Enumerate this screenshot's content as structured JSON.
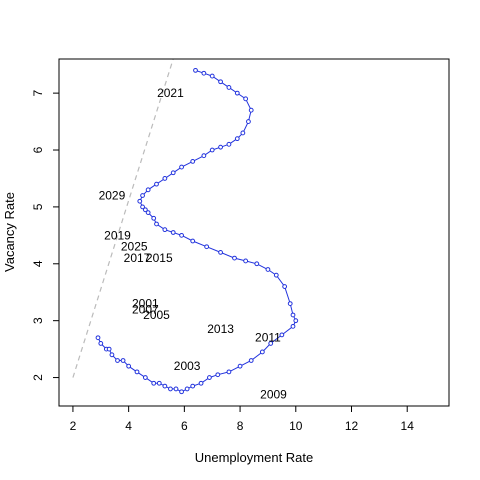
{
  "chart_data": {
    "type": "line",
    "title": "",
    "xlabel": "Unemployment Rate",
    "ylabel": "Vacancy Rate",
    "xlim": [
      1.5,
      15.5
    ],
    "ylim": [
      1.5,
      7.6
    ],
    "x_ticks": [
      2,
      4,
      6,
      8,
      10,
      12,
      14
    ],
    "y_ticks": [
      2,
      3,
      4,
      5,
      6,
      7
    ],
    "grid": false,
    "colors": {
      "series": "#2233dd",
      "reference_line": "#bbbbbb"
    },
    "reference_line": {
      "style": "dashed",
      "points": [
        [
          2.0,
          2.0
        ],
        [
          5.6,
          7.6
        ]
      ]
    },
    "series": [
      {
        "marker": "open-circle",
        "points": [
          [
            2.9,
            2.7
          ],
          [
            3.0,
            2.6
          ],
          [
            3.2,
            2.5
          ],
          [
            3.3,
            2.5
          ],
          [
            3.4,
            2.4
          ],
          [
            3.6,
            2.3
          ],
          [
            3.8,
            2.3
          ],
          [
            4.0,
            2.2
          ],
          [
            4.3,
            2.1
          ],
          [
            4.6,
            2.0
          ],
          [
            4.9,
            1.9
          ],
          [
            5.1,
            1.9
          ],
          [
            5.3,
            1.85
          ],
          [
            5.5,
            1.8
          ],
          [
            5.7,
            1.8
          ],
          [
            5.9,
            1.75
          ],
          [
            6.1,
            1.8
          ],
          [
            6.3,
            1.85
          ],
          [
            6.6,
            1.9
          ],
          [
            6.9,
            2.0
          ],
          [
            7.2,
            2.05
          ],
          [
            7.6,
            2.1
          ],
          [
            8.0,
            2.2
          ],
          [
            8.4,
            2.3
          ],
          [
            8.8,
            2.45
          ],
          [
            9.1,
            2.6
          ],
          [
            9.5,
            2.75
          ],
          [
            9.9,
            2.9
          ],
          [
            10.0,
            3.0
          ],
          [
            9.9,
            3.1
          ],
          [
            9.8,
            3.3
          ],
          [
            9.6,
            3.6
          ],
          [
            9.3,
            3.8
          ],
          [
            9.0,
            3.9
          ],
          [
            8.6,
            4.0
          ],
          [
            8.2,
            4.05
          ],
          [
            7.8,
            4.1
          ],
          [
            7.3,
            4.2
          ],
          [
            6.8,
            4.3
          ],
          [
            6.3,
            4.4
          ],
          [
            5.9,
            4.5
          ],
          [
            5.6,
            4.55
          ],
          [
            5.3,
            4.6
          ],
          [
            5.0,
            4.7
          ],
          [
            4.9,
            4.8
          ],
          [
            4.7,
            4.9
          ],
          [
            4.6,
            4.95
          ],
          [
            4.5,
            5.0
          ],
          [
            4.4,
            5.1
          ],
          [
            4.5,
            5.2
          ],
          [
            4.7,
            5.3
          ],
          [
            5.0,
            5.4
          ],
          [
            5.3,
            5.5
          ],
          [
            5.6,
            5.6
          ],
          [
            5.9,
            5.7
          ],
          [
            6.3,
            5.8
          ],
          [
            6.7,
            5.9
          ],
          [
            7.0,
            6.0
          ],
          [
            7.3,
            6.05
          ],
          [
            7.6,
            6.1
          ],
          [
            7.9,
            6.2
          ],
          [
            8.1,
            6.3
          ],
          [
            8.3,
            6.5
          ],
          [
            8.4,
            6.7
          ],
          [
            8.2,
            6.9
          ],
          [
            7.9,
            7.0
          ],
          [
            7.6,
            7.1
          ],
          [
            7.3,
            7.2
          ],
          [
            7.0,
            7.3
          ],
          [
            6.7,
            7.35
          ],
          [
            6.4,
            7.4
          ]
        ]
      }
    ],
    "annotations": [
      {
        "text": "2021",
        "x": 5.5,
        "y": 7.0
      },
      {
        "text": "2029",
        "x": 3.4,
        "y": 5.2
      },
      {
        "text": "2019",
        "x": 3.6,
        "y": 4.5
      },
      {
        "text": "2025",
        "x": 4.2,
        "y": 4.3
      },
      {
        "text": "2017",
        "x": 4.3,
        "y": 4.1
      },
      {
        "text": "2015",
        "x": 5.1,
        "y": 4.1
      },
      {
        "text": "2001",
        "x": 4.6,
        "y": 3.3
      },
      {
        "text": "2007",
        "x": 4.6,
        "y": 3.2
      },
      {
        "text": "2005",
        "x": 5.0,
        "y": 3.1
      },
      {
        "text": "2013",
        "x": 7.3,
        "y": 2.85
      },
      {
        "text": "2011",
        "x": 9.0,
        "y": 2.7
      },
      {
        "text": "2003",
        "x": 6.1,
        "y": 2.2
      },
      {
        "text": "2009",
        "x": 9.2,
        "y": 1.7
      }
    ]
  }
}
